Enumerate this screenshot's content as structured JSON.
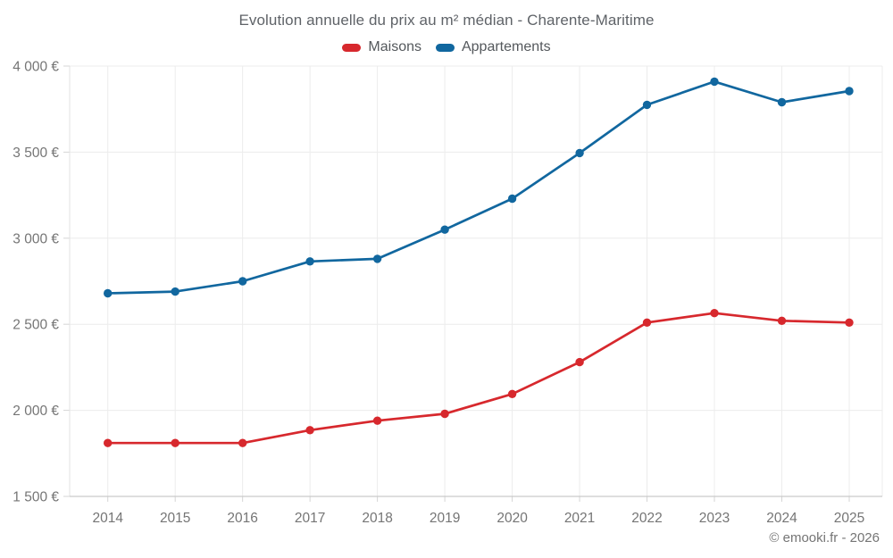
{
  "chart_data": {
    "type": "line",
    "title": "Evolution annuelle du prix au m² médian - Charente-Maritime",
    "categories": [
      "2014",
      "2015",
      "2016",
      "2017",
      "2018",
      "2019",
      "2020",
      "2021",
      "2022",
      "2023",
      "2024",
      "2025"
    ],
    "series": [
      {
        "name": "Maisons",
        "color": "#d7282d",
        "values": [
          1810,
          1810,
          1810,
          1885,
          1940,
          1980,
          2095,
          2280,
          2510,
          2565,
          2520,
          2510
        ]
      },
      {
        "name": "Appartements",
        "color": "#11679f",
        "values": [
          2680,
          2690,
          2750,
          2865,
          2880,
          3050,
          3230,
          3495,
          3775,
          3910,
          3790,
          3855
        ]
      }
    ],
    "xlabel": "",
    "ylabel": "",
    "ylim": [
      1500,
      4000
    ],
    "yticks": [
      1500,
      2000,
      2500,
      3000,
      3500,
      4000
    ],
    "ytick_labels": [
      "1 500 €",
      "2 000 €",
      "2 500 €",
      "3 000 €",
      "3 500 €",
      "4 000 €"
    ],
    "grid": true,
    "legend_position": "top",
    "grid_color": "#ececec",
    "axis_color": "#c9c9c9",
    "tick_color": "#d5d5d5",
    "label_color": "#757575"
  },
  "footer": {
    "copyright": "© emooki.fr - 2026"
  }
}
